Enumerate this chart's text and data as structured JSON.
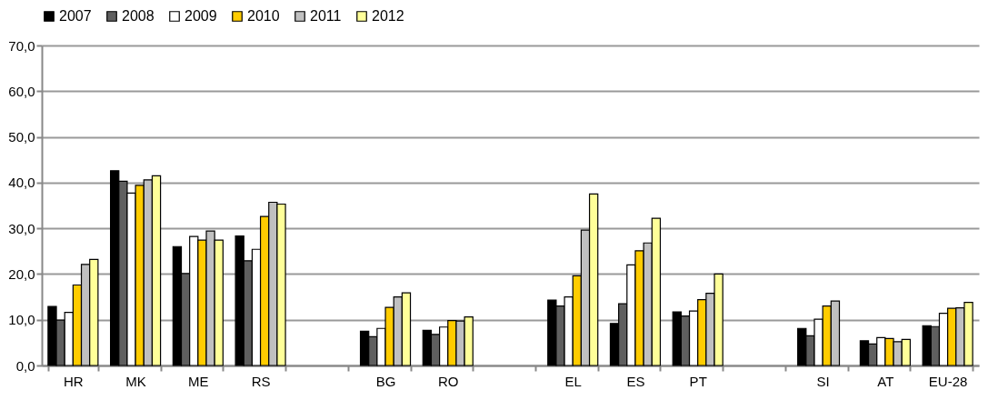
{
  "chart_data": {
    "type": "bar",
    "categories": [
      "HR",
      "MK",
      "ME",
      "RS",
      null,
      "BG",
      "RO",
      null,
      "EL",
      "ES",
      "PT",
      null,
      "SI",
      "AT",
      "EU-28"
    ],
    "series": [
      {
        "name": "2007",
        "color": "#000000",
        "values": [
          12.9,
          42.6,
          26.0,
          28.3,
          null,
          7.5,
          7.7,
          null,
          14.3,
          9.2,
          11.7,
          null,
          8.1,
          5.4,
          8.7
        ]
      },
      {
        "name": "2008",
        "color": "#5f5f5f",
        "values": [
          9.9,
          40.3,
          20.1,
          22.9,
          null,
          6.3,
          6.8,
          null,
          13.0,
          13.5,
          10.8,
          null,
          6.5,
          4.7,
          8.5
        ]
      },
      {
        "name": "2009",
        "color": "#ffffff",
        "values": [
          11.6,
          37.7,
          28.2,
          25.4,
          null,
          8.1,
          8.4,
          null,
          15.0,
          22.0,
          11.9,
          null,
          10.1,
          6.1,
          11.4
        ]
      },
      {
        "name": "2010",
        "color": "#ffcc00",
        "values": [
          17.6,
          39.4,
          27.4,
          32.6,
          null,
          12.7,
          9.8,
          null,
          19.6,
          25.1,
          14.4,
          null,
          13.0,
          5.9,
          12.5
        ]
      },
      {
        "name": "2011",
        "color": "#c0c0c0",
        "values": [
          22.1,
          40.6,
          29.4,
          35.7,
          null,
          15.0,
          9.7,
          null,
          29.6,
          26.8,
          15.8,
          null,
          14.1,
          5.2,
          12.6
        ]
      },
      {
        "name": "2012",
        "color": "#ffff99",
        "values": [
          23.2,
          41.5,
          27.4,
          35.3,
          null,
          15.9,
          10.6,
          null,
          37.5,
          32.2,
          20.0,
          null,
          null,
          5.7,
          13.8
        ]
      }
    ],
    "ylim": [
      0,
      70
    ],
    "yticks": [
      {
        "value": 0,
        "label": "0,0"
      },
      {
        "value": 10,
        "label": "10,0"
      },
      {
        "value": 20,
        "label": "20,0"
      },
      {
        "value": 30,
        "label": "30,0"
      },
      {
        "value": 40,
        "label": "40,0"
      },
      {
        "value": 50,
        "label": "50,0"
      },
      {
        "value": 60,
        "label": "60,0"
      },
      {
        "value": 70,
        "label": "70,0"
      }
    ],
    "grid": "y",
    "legend": "top"
  }
}
